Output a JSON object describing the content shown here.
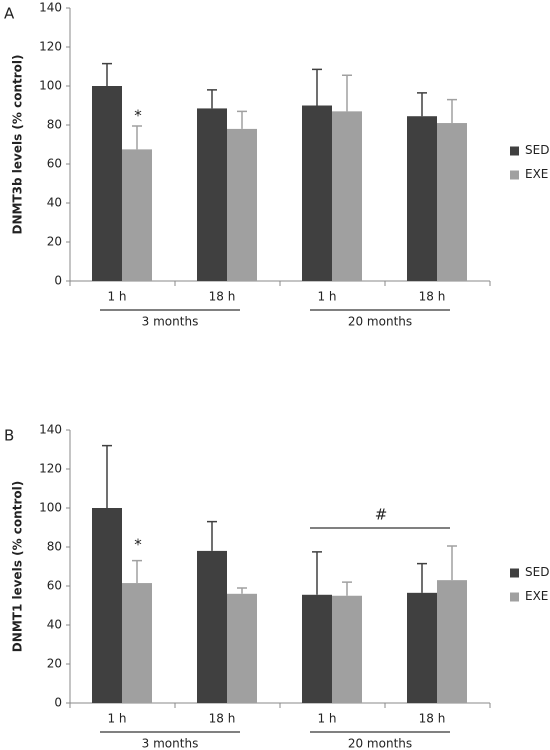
{
  "chart_data": [
    {
      "type": "bar",
      "panel": "A",
      "y_label": "DNMT3b levels (% control)",
      "categories": [
        "1 h",
        "18 h",
        "1 h",
        "18 h"
      ],
      "groups": [
        "3 months",
        "20 months"
      ],
      "series": [
        {
          "name": "SED",
          "color": "#404040",
          "values": [
            100,
            88.5,
            90,
            84.5
          ],
          "errors": [
            11.5,
            9.5,
            18.5,
            12
          ]
        },
        {
          "name": "EXE",
          "color": "#a0a0a0",
          "values": [
            67.5,
            78,
            87,
            81
          ],
          "errors": [
            12,
            9,
            18.5,
            12
          ]
        }
      ],
      "ylim": [
        0,
        140
      ],
      "yticks": [
        0,
        20,
        40,
        60,
        80,
        100,
        120,
        140
      ],
      "annotations": [
        "*"
      ]
    },
    {
      "type": "bar",
      "panel": "B",
      "y_label": "DNMT1 levels (% control)",
      "categories": [
        "1 h",
        "18 h",
        "1 h",
        "18 h"
      ],
      "groups": [
        "3 months",
        "20 months"
      ],
      "series": [
        {
          "name": "SED",
          "color": "#404040",
          "values": [
            100,
            78,
            55.5,
            56.5
          ],
          "errors": [
            32,
            15,
            22,
            15
          ]
        },
        {
          "name": "EXE",
          "color": "#a0a0a0",
          "values": [
            61.5,
            56,
            55,
            63
          ],
          "errors": [
            11.5,
            3,
            7,
            17.5
          ]
        }
      ],
      "ylim": [
        0,
        140
      ],
      "yticks": [
        0,
        20,
        40,
        60,
        80,
        100,
        120,
        140
      ],
      "annotations": [
        "*",
        "#"
      ]
    }
  ]
}
